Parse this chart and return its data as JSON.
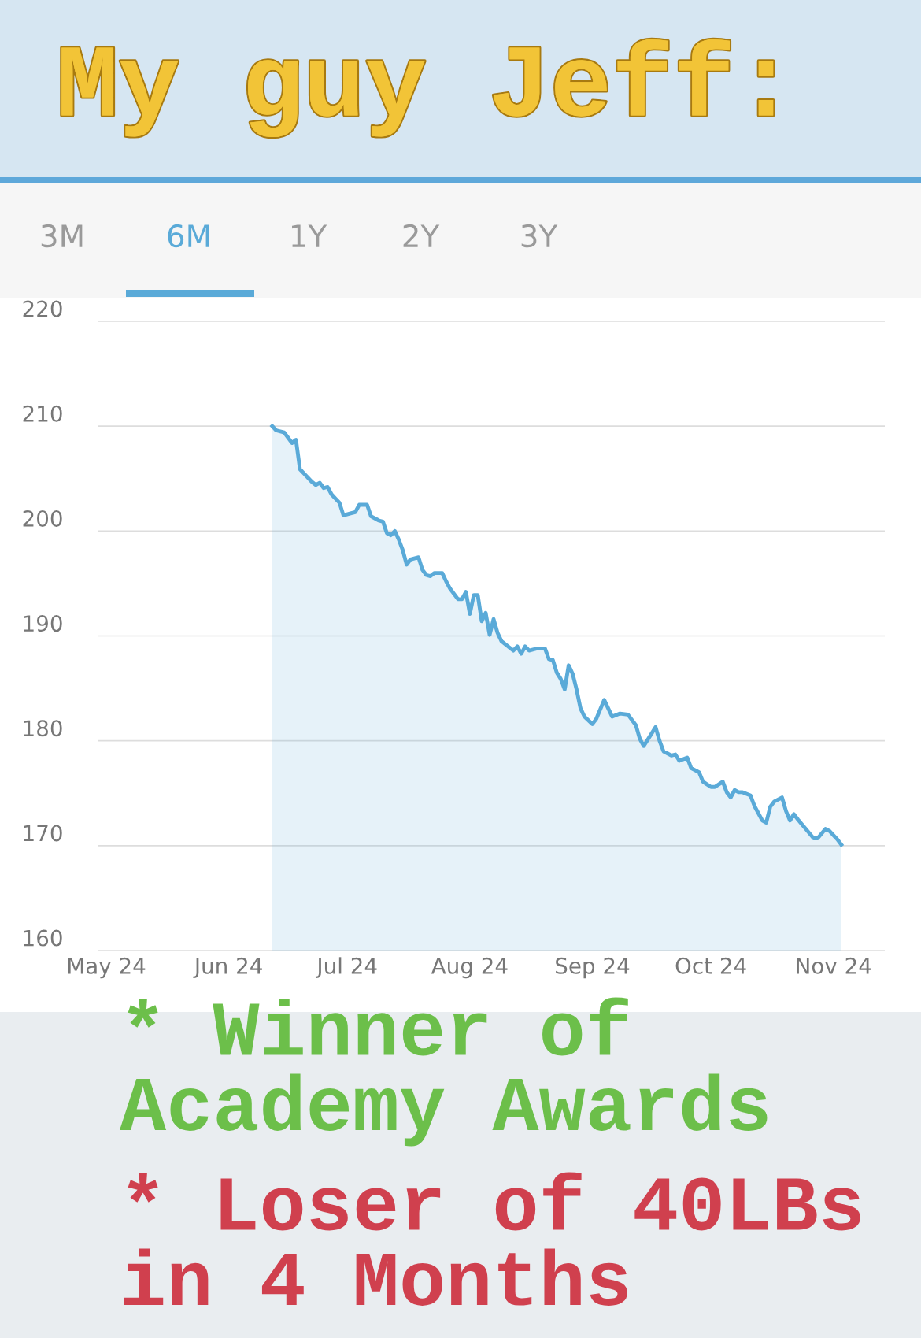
{
  "chart_data": {
    "type": "area",
    "title": "My guy Jeff:",
    "x": [
      "2024-06-12",
      "2024-06-13",
      "2024-06-15",
      "2024-06-16",
      "2024-06-17",
      "2024-06-18",
      "2024-06-19",
      "2024-06-20",
      "2024-06-22",
      "2024-06-23",
      "2024-06-24",
      "2024-06-25",
      "2024-06-26",
      "2024-06-27",
      "2024-06-28",
      "2024-06-29",
      "2024-06-30",
      "2024-07-02",
      "2024-07-03",
      "2024-07-04",
      "2024-07-06",
      "2024-07-07",
      "2024-07-09",
      "2024-07-10",
      "2024-07-11",
      "2024-07-12",
      "2024-07-13",
      "2024-07-14",
      "2024-07-15",
      "2024-07-16",
      "2024-07-17",
      "2024-07-19",
      "2024-07-20",
      "2024-07-21",
      "2024-07-22",
      "2024-07-23",
      "2024-07-25",
      "2024-07-26",
      "2024-07-27",
      "2024-07-29",
      "2024-07-30",
      "2024-07-31",
      "2024-08-01",
      "2024-08-02",
      "2024-08-03",
      "2024-08-04",
      "2024-08-05",
      "2024-08-06",
      "2024-08-07",
      "2024-08-08",
      "2024-08-09",
      "2024-08-10",
      "2024-08-12",
      "2024-08-13",
      "2024-08-14",
      "2024-08-15",
      "2024-08-16",
      "2024-08-18",
      "2024-08-20",
      "2024-08-21",
      "2024-08-22",
      "2024-08-23",
      "2024-08-24",
      "2024-08-25",
      "2024-08-26",
      "2024-08-27",
      "2024-08-28",
      "2024-08-29",
      "2024-08-30",
      "2024-09-01",
      "2024-09-02",
      "2024-09-04",
      "2024-09-05",
      "2024-09-06",
      "2024-09-08",
      "2024-09-10",
      "2024-09-12",
      "2024-09-13",
      "2024-09-14",
      "2024-09-16",
      "2024-09-17",
      "2024-09-18",
      "2024-09-19",
      "2024-09-21",
      "2024-09-22",
      "2024-09-23",
      "2024-09-25",
      "2024-09-26",
      "2024-09-28",
      "2024-09-29",
      "2024-10-01",
      "2024-10-02",
      "2024-10-04",
      "2024-10-05",
      "2024-10-06",
      "2024-10-07",
      "2024-10-08",
      "2024-10-09",
      "2024-10-11",
      "2024-10-12",
      "2024-10-14",
      "2024-10-15",
      "2024-10-16",
      "2024-10-17",
      "2024-10-19",
      "2024-10-20",
      "2024-10-21",
      "2024-10-22",
      "2024-10-23",
      "2024-10-25",
      "2024-10-27",
      "2024-10-28",
      "2024-10-30",
      "2024-10-31",
      "2024-11-02",
      "2024-11-03"
    ],
    "series": [
      {
        "color": "#5aaad8",
        "values": [
          210.0,
          209.6,
          209.4,
          208.9,
          208.4,
          208.7,
          205.9,
          205.5,
          204.7,
          204.4,
          204.6,
          204.1,
          204.2,
          203.5,
          203.1,
          202.7,
          201.5,
          201.7,
          201.8,
          202.5,
          202.5,
          201.4,
          201.0,
          200.9,
          199.8,
          199.6,
          200.0,
          199.2,
          198.2,
          196.8,
          197.3,
          197.5,
          196.3,
          195.8,
          195.7,
          196.0,
          196.0,
          195.2,
          194.5,
          193.5,
          193.5,
          194.2,
          192.1,
          193.9,
          193.9,
          191.4,
          192.2,
          190.1,
          191.6,
          190.3,
          189.5,
          189.2,
          188.6,
          189.0,
          188.3,
          189.0,
          188.6,
          188.8,
          188.8,
          187.8,
          187.7,
          186.5,
          185.9,
          184.9,
          187.2,
          186.4,
          184.9,
          183.1,
          182.3,
          181.6,
          182.1,
          183.9,
          183.1,
          182.3,
          182.6,
          182.5,
          181.5,
          180.2,
          179.5,
          180.7,
          181.3,
          180.0,
          179.0,
          178.6,
          178.7,
          178.1,
          178.4,
          177.4,
          177.0,
          176.1,
          175.6,
          175.6,
          176.1,
          175.1,
          174.6,
          175.3,
          175.1,
          175.1,
          174.8,
          173.8,
          172.4,
          172.2,
          173.7,
          174.2,
          174.6,
          173.3,
          172.4,
          173.0,
          172.5,
          171.6,
          170.7,
          170.7,
          171.6,
          171.4,
          170.6,
          170.1
        ]
      }
    ],
    "xlim": [
      "2024-04-29",
      "2024-11-14"
    ],
    "xticks": [
      {
        "value": "2024-05-01",
        "label": "May 24"
      },
      {
        "value": "2024-06-01",
        "label": "Jun 24"
      },
      {
        "value": "2024-07-01",
        "label": "Jul 24"
      },
      {
        "value": "2024-08-01",
        "label": "Aug 24"
      },
      {
        "value": "2024-09-01",
        "label": "Sep 24"
      },
      {
        "value": "2024-10-01",
        "label": "Oct 24"
      },
      {
        "value": "2024-11-01",
        "label": "Nov 24"
      }
    ],
    "ylim": [
      160,
      220
    ],
    "yticks": [
      160,
      170,
      180,
      190,
      200,
      210,
      220
    ],
    "grid": "y",
    "legend": false,
    "annotations": [
      "3M",
      "6M",
      "1Y",
      "2Y",
      "3Y",
      "* Winner of Academy Awards",
      "* Loser of 40LBs in 4 Months"
    ]
  }
}
